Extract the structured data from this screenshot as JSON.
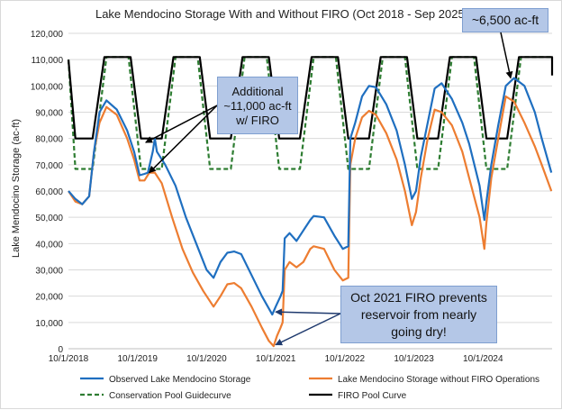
{
  "chart_data": {
    "type": "line",
    "title": "Lake Mendocino Storage With and Without FIRO (Oct 2018 - Sep 2025)",
    "ylabel": "Lake Mendocino Storage (ac-ft)",
    "xlabel": "",
    "ylim": [
      0,
      120000
    ],
    "x_ticks": [
      "10/1/2018",
      "10/1/2019",
      "10/1/2020",
      "10/1/2021",
      "10/1/2022",
      "10/1/2023",
      "10/1/2024"
    ],
    "y_ticks": [
      "0",
      "10,000",
      "20,000",
      "30,000",
      "40,000",
      "50,000",
      "60,000",
      "70,000",
      "80,000",
      "90,000",
      "100,000",
      "110,000",
      "120,000"
    ],
    "legend_position": "bottom",
    "grid": true,
    "series": [
      {
        "name": "Observed Lake Mendocino Storage",
        "color": "#1f6fc0",
        "points": [
          [
            2018.75,
            60000
          ],
          [
            2018.85,
            57000
          ],
          [
            2018.95,
            55000
          ],
          [
            2019.05,
            58000
          ],
          [
            2019.12,
            75000
          ],
          [
            2019.2,
            90000
          ],
          [
            2019.3,
            94500
          ],
          [
            2019.45,
            91000
          ],
          [
            2019.6,
            83000
          ],
          [
            2019.7,
            75000
          ],
          [
            2019.78,
            66000
          ],
          [
            2019.85,
            66500
          ],
          [
            2019.9,
            67000
          ],
          [
            2019.97,
            75000
          ],
          [
            2020.0,
            80000
          ],
          [
            2020.03,
            75000
          ],
          [
            2020.15,
            70000
          ],
          [
            2020.3,
            62000
          ],
          [
            2020.45,
            50000
          ],
          [
            2020.6,
            40000
          ],
          [
            2020.75,
            30000
          ],
          [
            2020.85,
            27000
          ],
          [
            2020.95,
            33000
          ],
          [
            2021.05,
            36500
          ],
          [
            2021.15,
            37000
          ],
          [
            2021.25,
            36000
          ],
          [
            2021.4,
            28000
          ],
          [
            2021.55,
            20000
          ],
          [
            2021.7,
            13000
          ],
          [
            2021.75,
            16000
          ],
          [
            2021.82,
            20000
          ],
          [
            2021.85,
            22000
          ],
          [
            2021.88,
            42000
          ],
          [
            2021.95,
            44000
          ],
          [
            2022.05,
            41000
          ],
          [
            2022.15,
            45000
          ],
          [
            2022.25,
            49000
          ],
          [
            2022.3,
            50500
          ],
          [
            2022.45,
            50000
          ],
          [
            2022.6,
            43000
          ],
          [
            2022.72,
            38000
          ],
          [
            2022.8,
            39000
          ],
          [
            2022.83,
            80000
          ],
          [
            2022.9,
            86000
          ],
          [
            2023.0,
            96000
          ],
          [
            2023.1,
            100000
          ],
          [
            2023.2,
            99500
          ],
          [
            2023.35,
            93000
          ],
          [
            2023.5,
            83000
          ],
          [
            2023.62,
            70000
          ],
          [
            2023.72,
            57000
          ],
          [
            2023.78,
            60000
          ],
          [
            2023.85,
            73000
          ],
          [
            2023.95,
            86000
          ],
          [
            2024.05,
            99000
          ],
          [
            2024.15,
            101000
          ],
          [
            2024.3,
            95000
          ],
          [
            2024.45,
            86000
          ],
          [
            2024.55,
            78000
          ],
          [
            2024.7,
            62000
          ],
          [
            2024.77,
            49000
          ],
          [
            2024.8,
            56000
          ],
          [
            2024.87,
            70000
          ],
          [
            2024.97,
            85000
          ],
          [
            2025.08,
            100000
          ],
          [
            2025.2,
            103000
          ],
          [
            2025.35,
            100000
          ],
          [
            2025.5,
            90000
          ],
          [
            2025.6,
            80000
          ],
          [
            2025.74,
            67000
          ]
        ]
      },
      {
        "name": "Lake Mendocino Storage without FIRO Operations",
        "color": "#ed7d31",
        "points": [
          [
            2018.75,
            60000
          ],
          [
            2018.85,
            56000
          ],
          [
            2018.95,
            55000
          ],
          [
            2019.05,
            58000
          ],
          [
            2019.12,
            75000
          ],
          [
            2019.2,
            86000
          ],
          [
            2019.3,
            92000
          ],
          [
            2019.45,
            89000
          ],
          [
            2019.6,
            80000
          ],
          [
            2019.7,
            72000
          ],
          [
            2019.78,
            64000
          ],
          [
            2019.85,
            64000
          ],
          [
            2019.92,
            67000
          ],
          [
            2020.0,
            67000
          ],
          [
            2020.1,
            63000
          ],
          [
            2020.25,
            50000
          ],
          [
            2020.4,
            38000
          ],
          [
            2020.55,
            29000
          ],
          [
            2020.7,
            22000
          ],
          [
            2020.85,
            16000
          ],
          [
            2020.95,
            20000
          ],
          [
            2021.05,
            24500
          ],
          [
            2021.15,
            25000
          ],
          [
            2021.25,
            23000
          ],
          [
            2021.4,
            16000
          ],
          [
            2021.55,
            8000
          ],
          [
            2021.65,
            3000
          ],
          [
            2021.72,
            1000
          ],
          [
            2021.77,
            5000
          ],
          [
            2021.82,
            8000
          ],
          [
            2021.85,
            10000
          ],
          [
            2021.88,
            30000
          ],
          [
            2021.95,
            33000
          ],
          [
            2022.05,
            31000
          ],
          [
            2022.15,
            33000
          ],
          [
            2022.25,
            38000
          ],
          [
            2022.3,
            39000
          ],
          [
            2022.45,
            38000
          ],
          [
            2022.6,
            30000
          ],
          [
            2022.72,
            26000
          ],
          [
            2022.8,
            27000
          ],
          [
            2022.83,
            70000
          ],
          [
            2022.9,
            80000
          ],
          [
            2023.0,
            88000
          ],
          [
            2023.1,
            90500
          ],
          [
            2023.2,
            89000
          ],
          [
            2023.35,
            82000
          ],
          [
            2023.5,
            72000
          ],
          [
            2023.62,
            60000
          ],
          [
            2023.72,
            47000
          ],
          [
            2023.78,
            52000
          ],
          [
            2023.85,
            65000
          ],
          [
            2023.95,
            80000
          ],
          [
            2024.05,
            91000
          ],
          [
            2024.15,
            90000
          ],
          [
            2024.3,
            85000
          ],
          [
            2024.45,
            75000
          ],
          [
            2024.55,
            65000
          ],
          [
            2024.7,
            50000
          ],
          [
            2024.77,
            38000
          ],
          [
            2024.8,
            48000
          ],
          [
            2024.87,
            65000
          ],
          [
            2024.97,
            80000
          ],
          [
            2025.08,
            96000
          ],
          [
            2025.2,
            94000
          ],
          [
            2025.35,
            86000
          ],
          [
            2025.5,
            77000
          ],
          [
            2025.6,
            70000
          ],
          [
            2025.74,
            60000
          ]
        ]
      },
      {
        "name": "Conservation Pool Guidecurve",
        "color": "#2e7d32",
        "dash": "5,3",
        "points": [
          [
            2018.75,
            110000
          ],
          [
            2018.85,
            68400
          ],
          [
            2019.0,
            68400
          ],
          [
            2019.1,
            68400
          ],
          [
            2019.3,
            111000
          ],
          [
            2019.62,
            111000
          ],
          [
            2019.8,
            68400
          ],
          [
            2020.1,
            68400
          ],
          [
            2020.3,
            111000
          ],
          [
            2020.62,
            111000
          ],
          [
            2020.8,
            68400
          ],
          [
            2021.1,
            68400
          ],
          [
            2021.3,
            111000
          ],
          [
            2021.62,
            111000
          ],
          [
            2021.8,
            68400
          ],
          [
            2022.1,
            68400
          ],
          [
            2022.3,
            111000
          ],
          [
            2022.62,
            111000
          ],
          [
            2022.8,
            68400
          ],
          [
            2023.1,
            68400
          ],
          [
            2023.3,
            111000
          ],
          [
            2023.62,
            111000
          ],
          [
            2023.8,
            68400
          ],
          [
            2024.1,
            68400
          ],
          [
            2024.3,
            111000
          ],
          [
            2024.62,
            111000
          ],
          [
            2024.8,
            68400
          ],
          [
            2025.1,
            68400
          ],
          [
            2025.3,
            111000
          ],
          [
            2025.75,
            111000
          ]
        ]
      },
      {
        "name": "FIRO Pool Curve",
        "color": "#000000",
        "points": [
          [
            2018.75,
            110000
          ],
          [
            2018.85,
            80000
          ],
          [
            2019.1,
            80000
          ],
          [
            2019.27,
            111000
          ],
          [
            2019.65,
            111000
          ],
          [
            2019.8,
            80000
          ],
          [
            2020.1,
            80000
          ],
          [
            2020.27,
            111000
          ],
          [
            2020.65,
            111000
          ],
          [
            2020.8,
            80000
          ],
          [
            2021.1,
            80000
          ],
          [
            2021.27,
            111000
          ],
          [
            2021.65,
            111000
          ],
          [
            2021.8,
            80000
          ],
          [
            2022.1,
            80000
          ],
          [
            2022.27,
            111000
          ],
          [
            2022.65,
            111000
          ],
          [
            2022.8,
            80000
          ],
          [
            2023.1,
            80000
          ],
          [
            2023.27,
            111000
          ],
          [
            2023.65,
            111000
          ],
          [
            2023.8,
            80000
          ],
          [
            2024.1,
            80000
          ],
          [
            2024.27,
            111000
          ],
          [
            2024.65,
            111000
          ],
          [
            2024.8,
            80000
          ],
          [
            2025.1,
            80000
          ],
          [
            2025.27,
            111000
          ],
          [
            2025.75,
            111000
          ],
          [
            2025.75,
            104000
          ]
        ]
      }
    ],
    "annotations": [
      {
        "id": "firo-gain",
        "text": [
          "Additional",
          "~11,000 ac-ft",
          "w/ FIRO"
        ],
        "targets": [
          [
            2019.87,
            78500
          ],
          [
            2019.92,
            67000
          ]
        ]
      },
      {
        "id": "top-right",
        "text": [
          "~6,500 ac-ft"
        ],
        "targets": [
          [
            2025.15,
            103000
          ]
        ]
      },
      {
        "id": "dry",
        "text": [
          "Oct 2021 FIRO prevents",
          "reservoir from nearly",
          "going dry!"
        ],
        "targets": [
          [
            2021.75,
            14000
          ],
          [
            2021.75,
            1500
          ]
        ]
      }
    ]
  }
}
